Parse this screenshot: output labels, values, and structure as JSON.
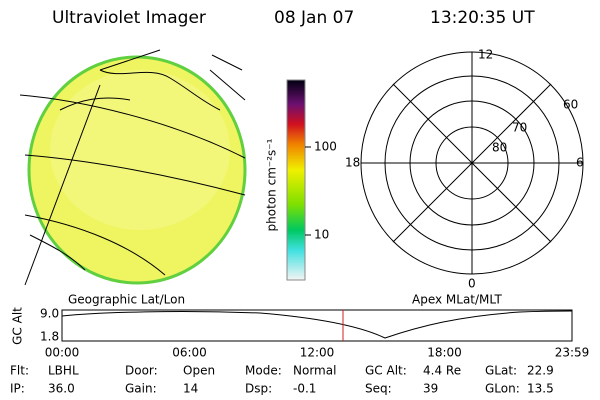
{
  "header": {
    "title": "Ultraviolet Imager",
    "date": "08 Jan 07",
    "time": "13:20:35 UT"
  },
  "colorbar": {
    "label": "photon cm⁻²s⁻¹",
    "ticks": [
      "100",
      "10"
    ]
  },
  "polar": {
    "labels": [
      "12",
      "60",
      "70",
      "80",
      "18",
      "6",
      "0"
    ]
  },
  "panels": {
    "left": "Geographic Lat/Lon",
    "right": "Apex MLat/MLT"
  },
  "altitude": {
    "axis_label": "GC Alt",
    "ticks": [
      "9.0",
      "1.8"
    ],
    "times": [
      "00:00",
      "06:00",
      "12:00",
      "18:00",
      "23:59"
    ]
  },
  "footer": {
    "rows": [
      [
        [
          "Flt:",
          "LBHL"
        ],
        [
          "Door:",
          "Open"
        ],
        [
          "Mode:",
          "Normal"
        ],
        [
          "GC Alt:",
          "4.4 Re"
        ],
        [
          "GLat:",
          "22.9"
        ]
      ],
      [
        [
          "IP:",
          "36.0"
        ],
        [
          "Gain:",
          "14"
        ],
        [
          "Dsp:",
          "-0.1"
        ],
        [
          "Seq:",
          "39"
        ],
        [
          "GLon:",
          "13.5"
        ]
      ]
    ]
  }
}
